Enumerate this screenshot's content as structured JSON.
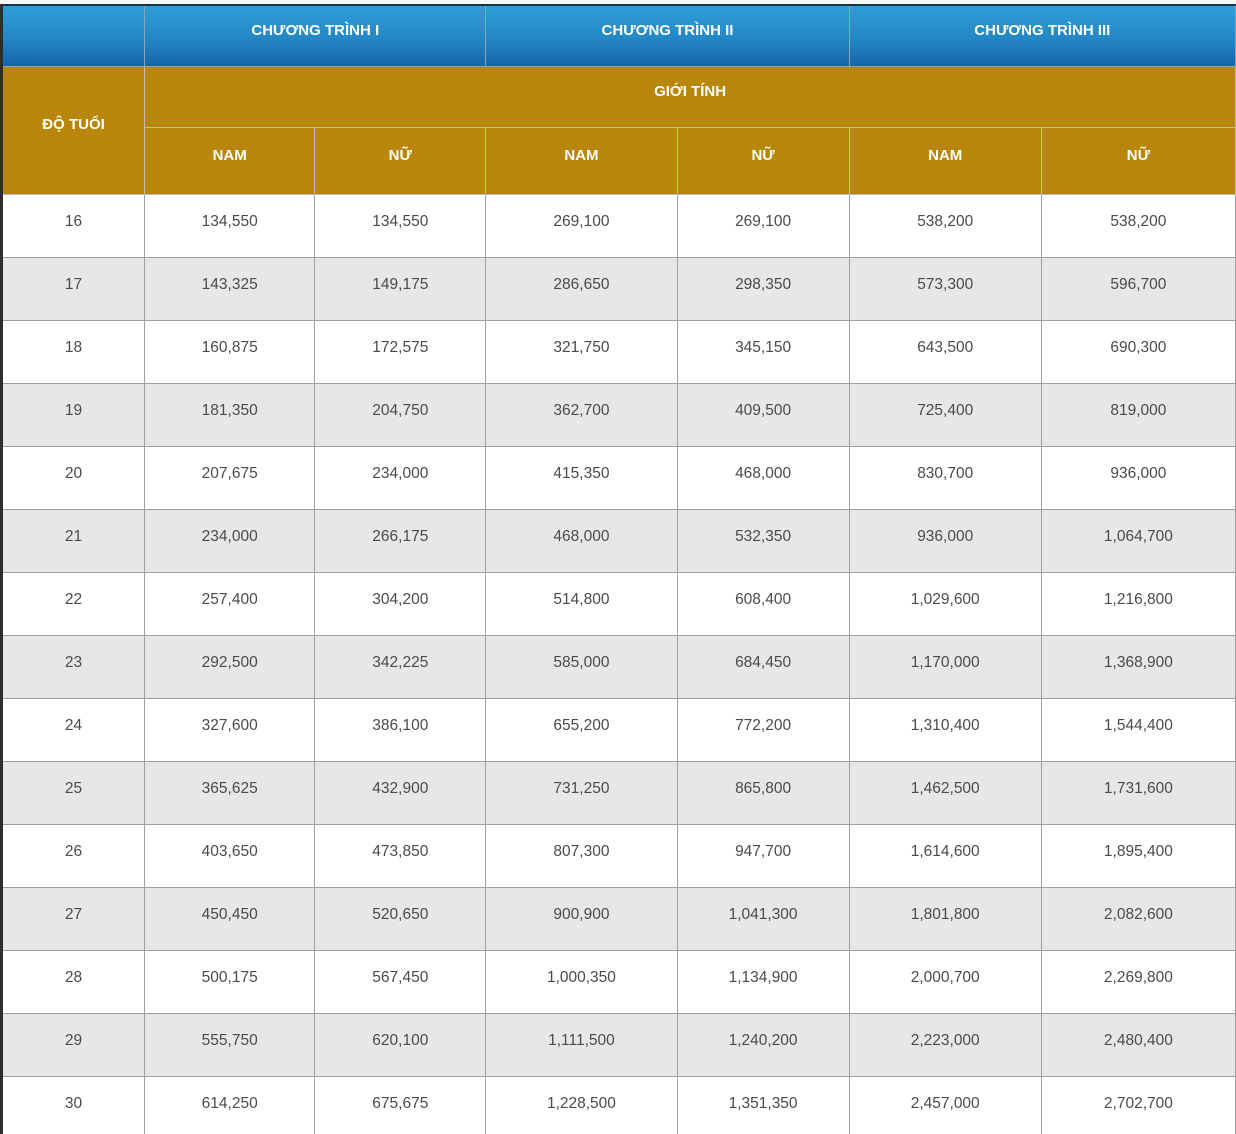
{
  "chart_data": {
    "type": "table",
    "title": "",
    "column_groups": [
      "CHƯƠNG TRÌNH I",
      "CHƯƠNG TRÌNH II",
      "CHƯƠNG TRÌNH III"
    ],
    "row_header": "ĐỘ TUỔI",
    "span_header": "GIỚI TÍNH",
    "sub_columns": [
      "NAM",
      "NỮ"
    ],
    "rows": [
      {
        "age": "16",
        "values": [
          "134,550",
          "134,550",
          "269,100",
          "269,100",
          "538,200",
          "538,200"
        ]
      },
      {
        "age": "17",
        "values": [
          "143,325",
          "149,175",
          "286,650",
          "298,350",
          "573,300",
          "596,700"
        ]
      },
      {
        "age": "18",
        "values": [
          "160,875",
          "172,575",
          "321,750",
          "345,150",
          "643,500",
          "690,300"
        ]
      },
      {
        "age": "19",
        "values": [
          "181,350",
          "204,750",
          "362,700",
          "409,500",
          "725,400",
          "819,000"
        ]
      },
      {
        "age": "20",
        "values": [
          "207,675",
          "234,000",
          "415,350",
          "468,000",
          "830,700",
          "936,000"
        ]
      },
      {
        "age": "21",
        "values": [
          "234,000",
          "266,175",
          "468,000",
          "532,350",
          "936,000",
          "1,064,700"
        ]
      },
      {
        "age": "22",
        "values": [
          "257,400",
          "304,200",
          "514,800",
          "608,400",
          "1,029,600",
          "1,216,800"
        ]
      },
      {
        "age": "23",
        "values": [
          "292,500",
          "342,225",
          "585,000",
          "684,450",
          "1,170,000",
          "1,368,900"
        ]
      },
      {
        "age": "24",
        "values": [
          "327,600",
          "386,100",
          "655,200",
          "772,200",
          "1,310,400",
          "1,544,400"
        ]
      },
      {
        "age": "25",
        "values": [
          "365,625",
          "432,900",
          "731,250",
          "865,800",
          "1,462,500",
          "1,731,600"
        ]
      },
      {
        "age": "26",
        "values": [
          "403,650",
          "473,850",
          "807,300",
          "947,700",
          "1,614,600",
          "1,895,400"
        ]
      },
      {
        "age": "27",
        "values": [
          "450,450",
          "520,650",
          "900,900",
          "1,041,300",
          "1,801,800",
          "2,082,600"
        ]
      },
      {
        "age": "28",
        "values": [
          "500,175",
          "567,450",
          "1,000,350",
          "1,134,900",
          "2,000,700",
          "2,269,800"
        ]
      },
      {
        "age": "29",
        "values": [
          "555,750",
          "620,100",
          "1,111,500",
          "1,240,200",
          "2,223,000",
          "2,480,400"
        ]
      },
      {
        "age": "30",
        "values": [
          "614,250",
          "675,675",
          "1,228,500",
          "1,351,350",
          "2,457,000",
          "2,702,700"
        ]
      }
    ]
  },
  "colors": {
    "header_blue_top": "#2e9ed5",
    "header_blue_bottom": "#1565a8",
    "header_gold": "#b8860b",
    "row_alternate": "#e7e7e7",
    "grid_border": "#9f9f9f",
    "top_line": "#17334d",
    "left_edge": "#2e2e2e",
    "data_text": "#4a4a4a"
  }
}
